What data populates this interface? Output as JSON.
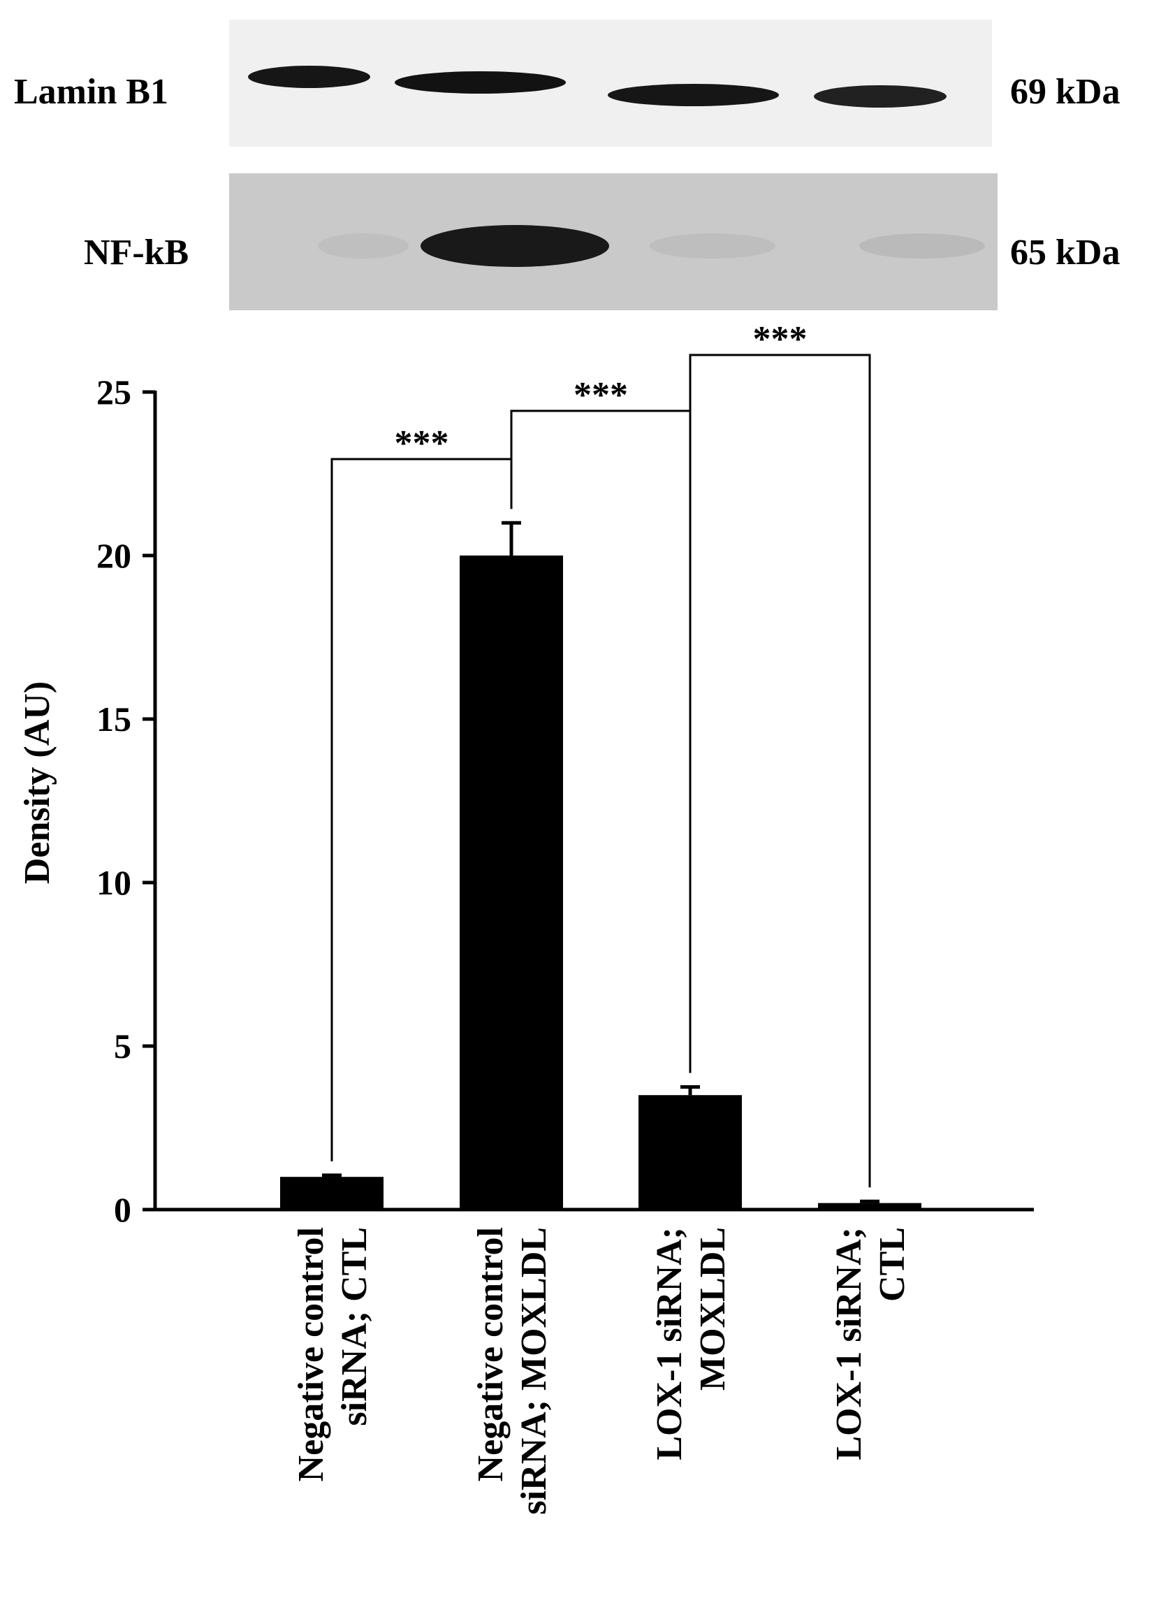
{
  "blot": {
    "rows": [
      {
        "protein": "Lamin B1",
        "mw": "69 kDa",
        "intensities": [
          0.95,
          0.97,
          0.95,
          0.9
        ]
      },
      {
        "protein": "NF-kB",
        "mw": "65 kDa",
        "intensities": [
          0.05,
          0.92,
          0.06,
          0.08
        ]
      }
    ],
    "colors": {
      "lamin_background": "#f0f0f0",
      "nfkb_background": "#c9c9c9",
      "band": "#0a0a0a"
    }
  },
  "chart_data": {
    "type": "bar",
    "categories": [
      [
        "Negative control",
        "siRNA; CTL"
      ],
      [
        "Negative control",
        "siRNA; MOXLDL"
      ],
      [
        "LOX-1 siRNA;",
        "MOXLDL"
      ],
      [
        "LOX-1 siRNA;",
        "CTL"
      ]
    ],
    "values": [
      1.0,
      20.0,
      3.5,
      0.2
    ],
    "errors": [
      0.05,
      1.0,
      0.25,
      0.05
    ],
    "ylabel": "Density (AU)",
    "xlabel": "",
    "title": "",
    "ylim": [
      0,
      25
    ],
    "yticks": [
      0,
      5,
      10,
      15,
      20,
      25
    ],
    "grid": false,
    "significance": [
      {
        "from": 0,
        "to": 1,
        "label": "***"
      },
      {
        "from": 1,
        "to": 2,
        "label": "***"
      },
      {
        "from": 2,
        "to": 3,
        "label": "***"
      }
    ],
    "colors": {
      "bar": "#000000"
    }
  }
}
